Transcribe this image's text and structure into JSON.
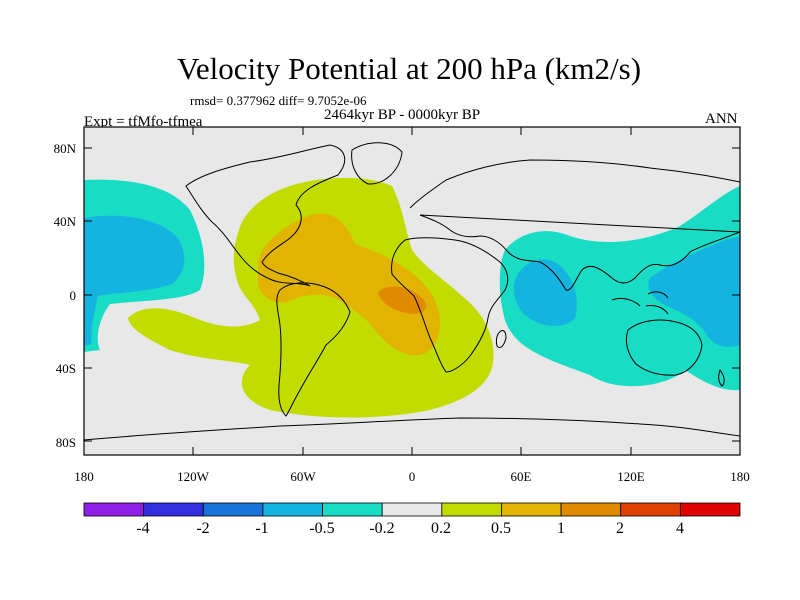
{
  "title": "Velocity Potential at 200 hPa (km2/s)",
  "stats": "rmsd= 0.377962 diff= 9.7052e-06",
  "period": "2464kyr BP - 0000kyr BP",
  "experiment": "Expt = tfMfo-tfmea",
  "season": "ANN",
  "lat_labels": [
    "80N",
    "40N",
    "0",
    "40S",
    "80S"
  ],
  "lon_labels": [
    "180",
    "120W",
    "60W",
    "0",
    "60E",
    "120E",
    "180"
  ],
  "colorbar": {
    "labels": [
      "-4",
      "-2",
      "-1",
      "-0.5",
      "-0.2",
      "0.2",
      "0.5",
      "1",
      "2",
      "4"
    ],
    "colors": [
      "#8f1fe6",
      "#3030e0",
      "#1874d8",
      "#14b4e0",
      "#18dcc4",
      "#e8e8e8",
      "#c2dc00",
      "#e0b400",
      "#e08a00",
      "#e04000",
      "#e00000"
    ]
  },
  "fill_colors": {
    "ocean_land_neutral": "#e8e8e8",
    "neg_weak": "#18dcc4",
    "neg_mid": "#14b4e0",
    "pos_weak": "#c2dc00",
    "pos_mid": "#e0b400",
    "pos_strong": "#e08a00"
  }
}
